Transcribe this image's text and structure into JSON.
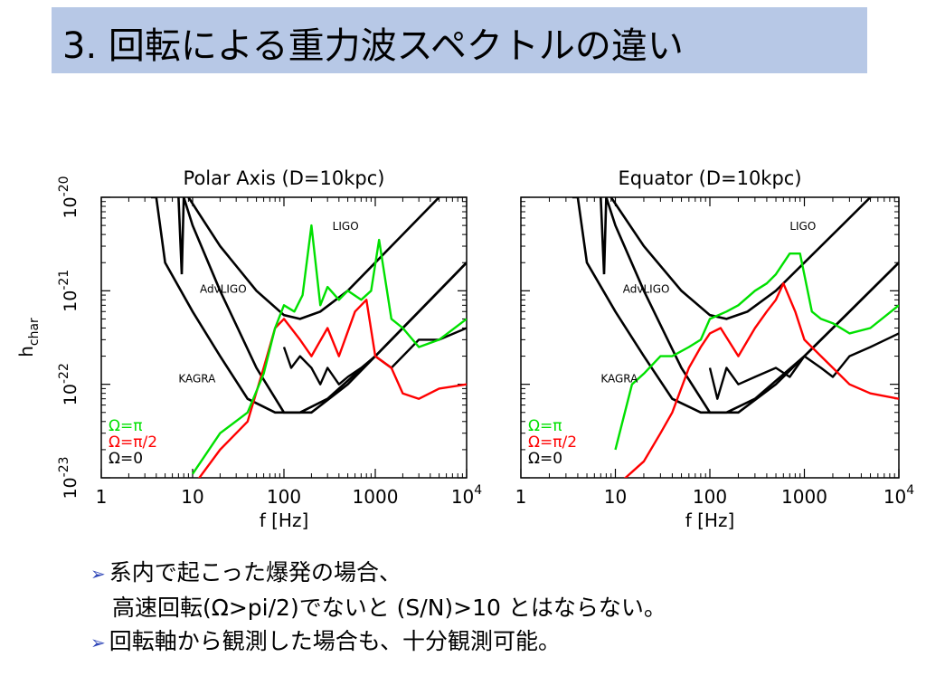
{
  "title": "3. 回転による重力波スペクトルの違い",
  "bullets": [
    {
      "marker": "➢",
      "text": "系内で起こった爆発の場合、"
    },
    {
      "marker": "",
      "text": "高速回転(Ω>pi/2)でないと (S/N)>10 とはならない。"
    },
    {
      "marker": "➢",
      "text": "回転軸から観測した場合も、十分観測可能。"
    }
  ],
  "colors": {
    "title_bg": "#b7c8e6",
    "green": "#00e000",
    "red": "#ff0000",
    "black": "#000000",
    "bullet": "#2f46b8"
  },
  "chart_data": [
    {
      "type": "line",
      "title": "Polar Axis (D=10kpc)",
      "xlabel": "f [Hz]",
      "ylabel": "h_char",
      "xscale": "log",
      "yscale": "log",
      "xlim": [
        1,
        10000
      ],
      "ylim": [
        1e-23,
        1e-20
      ],
      "x_ticks": [
        "1",
        "10",
        "100",
        "1000",
        "10^4"
      ],
      "y_ticks": [
        "10^-23",
        "10^-22",
        "10^-21",
        "10^-20"
      ],
      "detectors": [
        {
          "name": "LIGO",
          "x": [
            9,
            20,
            50,
            100,
            150,
            250,
            500,
            1000,
            2000,
            5000,
            10000
          ],
          "y": [
            1e-20,
            3e-21,
            1e-21,
            5.5e-22,
            5e-22,
            6e-22,
            1e-21,
            2e-21,
            4e-21,
            1e-20,
            2e-20
          ]
        },
        {
          "name": "AdvLIGO",
          "x": [
            7,
            7.6,
            8,
            10,
            20,
            50,
            100,
            200,
            500,
            1000,
            3000,
            10000
          ],
          "y": [
            1e-20,
            1.5e-21,
            1e-20,
            5e-21,
            1e-21,
            1.5e-22,
            5e-23,
            5e-23,
            1e-22,
            2e-22,
            6e-22,
            2e-21
          ]
        },
        {
          "name": "KAGRA",
          "x": [
            3.5,
            4,
            5,
            10,
            20,
            40,
            80,
            150,
            300,
            1000,
            3000,
            10000
          ],
          "y": [
            1e-20,
            1e-20,
            2e-21,
            6e-22,
            2e-22,
            7e-23,
            5e-23,
            5e-23,
            7e-23,
            2e-22,
            6e-22,
            2e-21
          ]
        }
      ],
      "series": [
        {
          "name": "Ω=π",
          "color": "#00e000",
          "x": [
            10,
            20,
            40,
            60,
            80,
            100,
            130,
            160,
            200,
            250,
            300,
            400,
            500,
            700,
            900,
            1100,
            1500,
            2000,
            3000,
            5000,
            10000
          ],
          "y": [
            1.1e-23,
            3e-23,
            5e-23,
            1.3e-22,
            4e-22,
            7e-22,
            6e-22,
            9e-22,
            5e-21,
            7e-22,
            1.1e-21,
            8e-22,
            1e-21,
            8e-22,
            1e-21,
            3.5e-21,
            5e-22,
            4e-22,
            2.5e-22,
            3e-22,
            5e-22
          ]
        },
        {
          "name": "Ω=π/2",
          "color": "#ff0000",
          "x": [
            10,
            20,
            40,
            60,
            80,
            100,
            150,
            200,
            300,
            400,
            600,
            800,
            1000,
            1500,
            2000,
            3000,
            5000,
            10000
          ],
          "y": [
            8e-24,
            2e-23,
            4e-23,
            1.5e-22,
            4e-22,
            5e-22,
            3e-22,
            2e-22,
            4e-22,
            2e-22,
            6e-22,
            8e-22,
            2e-22,
            1.5e-22,
            8e-23,
            7e-23,
            9e-23,
            1e-22
          ]
        },
        {
          "name": "Ω=0",
          "color": "#000000",
          "x": [
            100,
            120,
            150,
            200,
            250,
            300,
            400,
            500,
            700,
            1000,
            1500,
            2000,
            3000,
            5000,
            10000
          ],
          "y": [
            2.5e-22,
            1.5e-22,
            2e-22,
            1.5e-22,
            1e-22,
            1.5e-22,
            1e-22,
            1.2e-22,
            1.5e-22,
            2e-22,
            1.5e-22,
            2e-22,
            3e-22,
            3e-22,
            4e-22
          ]
        }
      ]
    },
    {
      "type": "line",
      "title": "Equator (D=10kpc)",
      "xlabel": "f [Hz]",
      "xscale": "log",
      "yscale": "log",
      "xlim": [
        1,
        10000
      ],
      "ylim": [
        1e-23,
        1e-20
      ],
      "x_ticks": [
        "1",
        "10",
        "100",
        "1000",
        "10^4"
      ],
      "detectors": [
        {
          "name": "LIGO",
          "x": [
            9,
            20,
            50,
            100,
            150,
            250,
            500,
            1000,
            2000,
            5000,
            10000
          ],
          "y": [
            1e-20,
            3e-21,
            1e-21,
            5.5e-22,
            5e-22,
            6e-22,
            1e-21,
            2e-21,
            4e-21,
            1e-20,
            2e-20
          ]
        },
        {
          "name": "AdvLIGO",
          "x": [
            7,
            7.6,
            8,
            10,
            20,
            50,
            100,
            200,
            500,
            1000,
            3000,
            10000
          ],
          "y": [
            1e-20,
            1.5e-21,
            1e-20,
            5e-21,
            1e-21,
            1.5e-22,
            5e-23,
            5e-23,
            1e-22,
            2e-22,
            6e-22,
            2e-21
          ]
        },
        {
          "name": "KAGRA",
          "x": [
            3.5,
            4,
            5,
            10,
            20,
            40,
            80,
            150,
            300,
            1000,
            3000,
            10000
          ],
          "y": [
            1e-20,
            1e-20,
            2e-21,
            6e-22,
            2e-22,
            7e-23,
            5e-23,
            5e-23,
            7e-23,
            2e-22,
            6e-22,
            2e-21
          ]
        }
      ],
      "series": [
        {
          "name": "Ω=π",
          "color": "#00e000",
          "x": [
            10,
            15,
            20,
            30,
            40,
            60,
            80,
            100,
            150,
            200,
            300,
            400,
            500,
            700,
            900,
            1200,
            1500,
            2000,
            3000,
            5000,
            10000
          ],
          "y": [
            2e-23,
            1e-22,
            1.3e-22,
            2e-22,
            2e-22,
            2.5e-22,
            3e-22,
            5e-22,
            6e-22,
            7e-22,
            1e-21,
            1.2e-21,
            1.5e-21,
            2.5e-21,
            2.5e-21,
            6e-22,
            5e-22,
            4.5e-22,
            3.5e-22,
            4e-22,
            7e-22
          ]
        },
        {
          "name": "Ω=π/2",
          "color": "#ff0000",
          "x": [
            10,
            20,
            30,
            40,
            60,
            80,
            100,
            130,
            200,
            300,
            400,
            500,
            600,
            800,
            1000,
            1500,
            2000,
            3000,
            5000,
            10000
          ],
          "y": [
            8e-24,
            1.5e-23,
            3e-23,
            5e-23,
            1.5e-22,
            2.5e-22,
            3.5e-22,
            4e-22,
            2e-22,
            4e-22,
            6e-22,
            8e-22,
            1.2e-21,
            6e-22,
            3e-22,
            2e-22,
            1.5e-22,
            1e-22,
            8e-23,
            7e-23
          ]
        },
        {
          "name": "Ω=0",
          "color": "#000000",
          "x": [
            100,
            120,
            150,
            200,
            300,
            500,
            700,
            1000,
            1500,
            2000,
            3000,
            5000,
            10000
          ],
          "y": [
            1.5e-22,
            7e-23,
            1.5e-22,
            1e-22,
            1.2e-22,
            1.5e-22,
            1.2e-22,
            2e-22,
            1.5e-22,
            1.2e-22,
            2e-22,
            2.5e-22,
            3.5e-22
          ]
        }
      ]
    }
  ]
}
